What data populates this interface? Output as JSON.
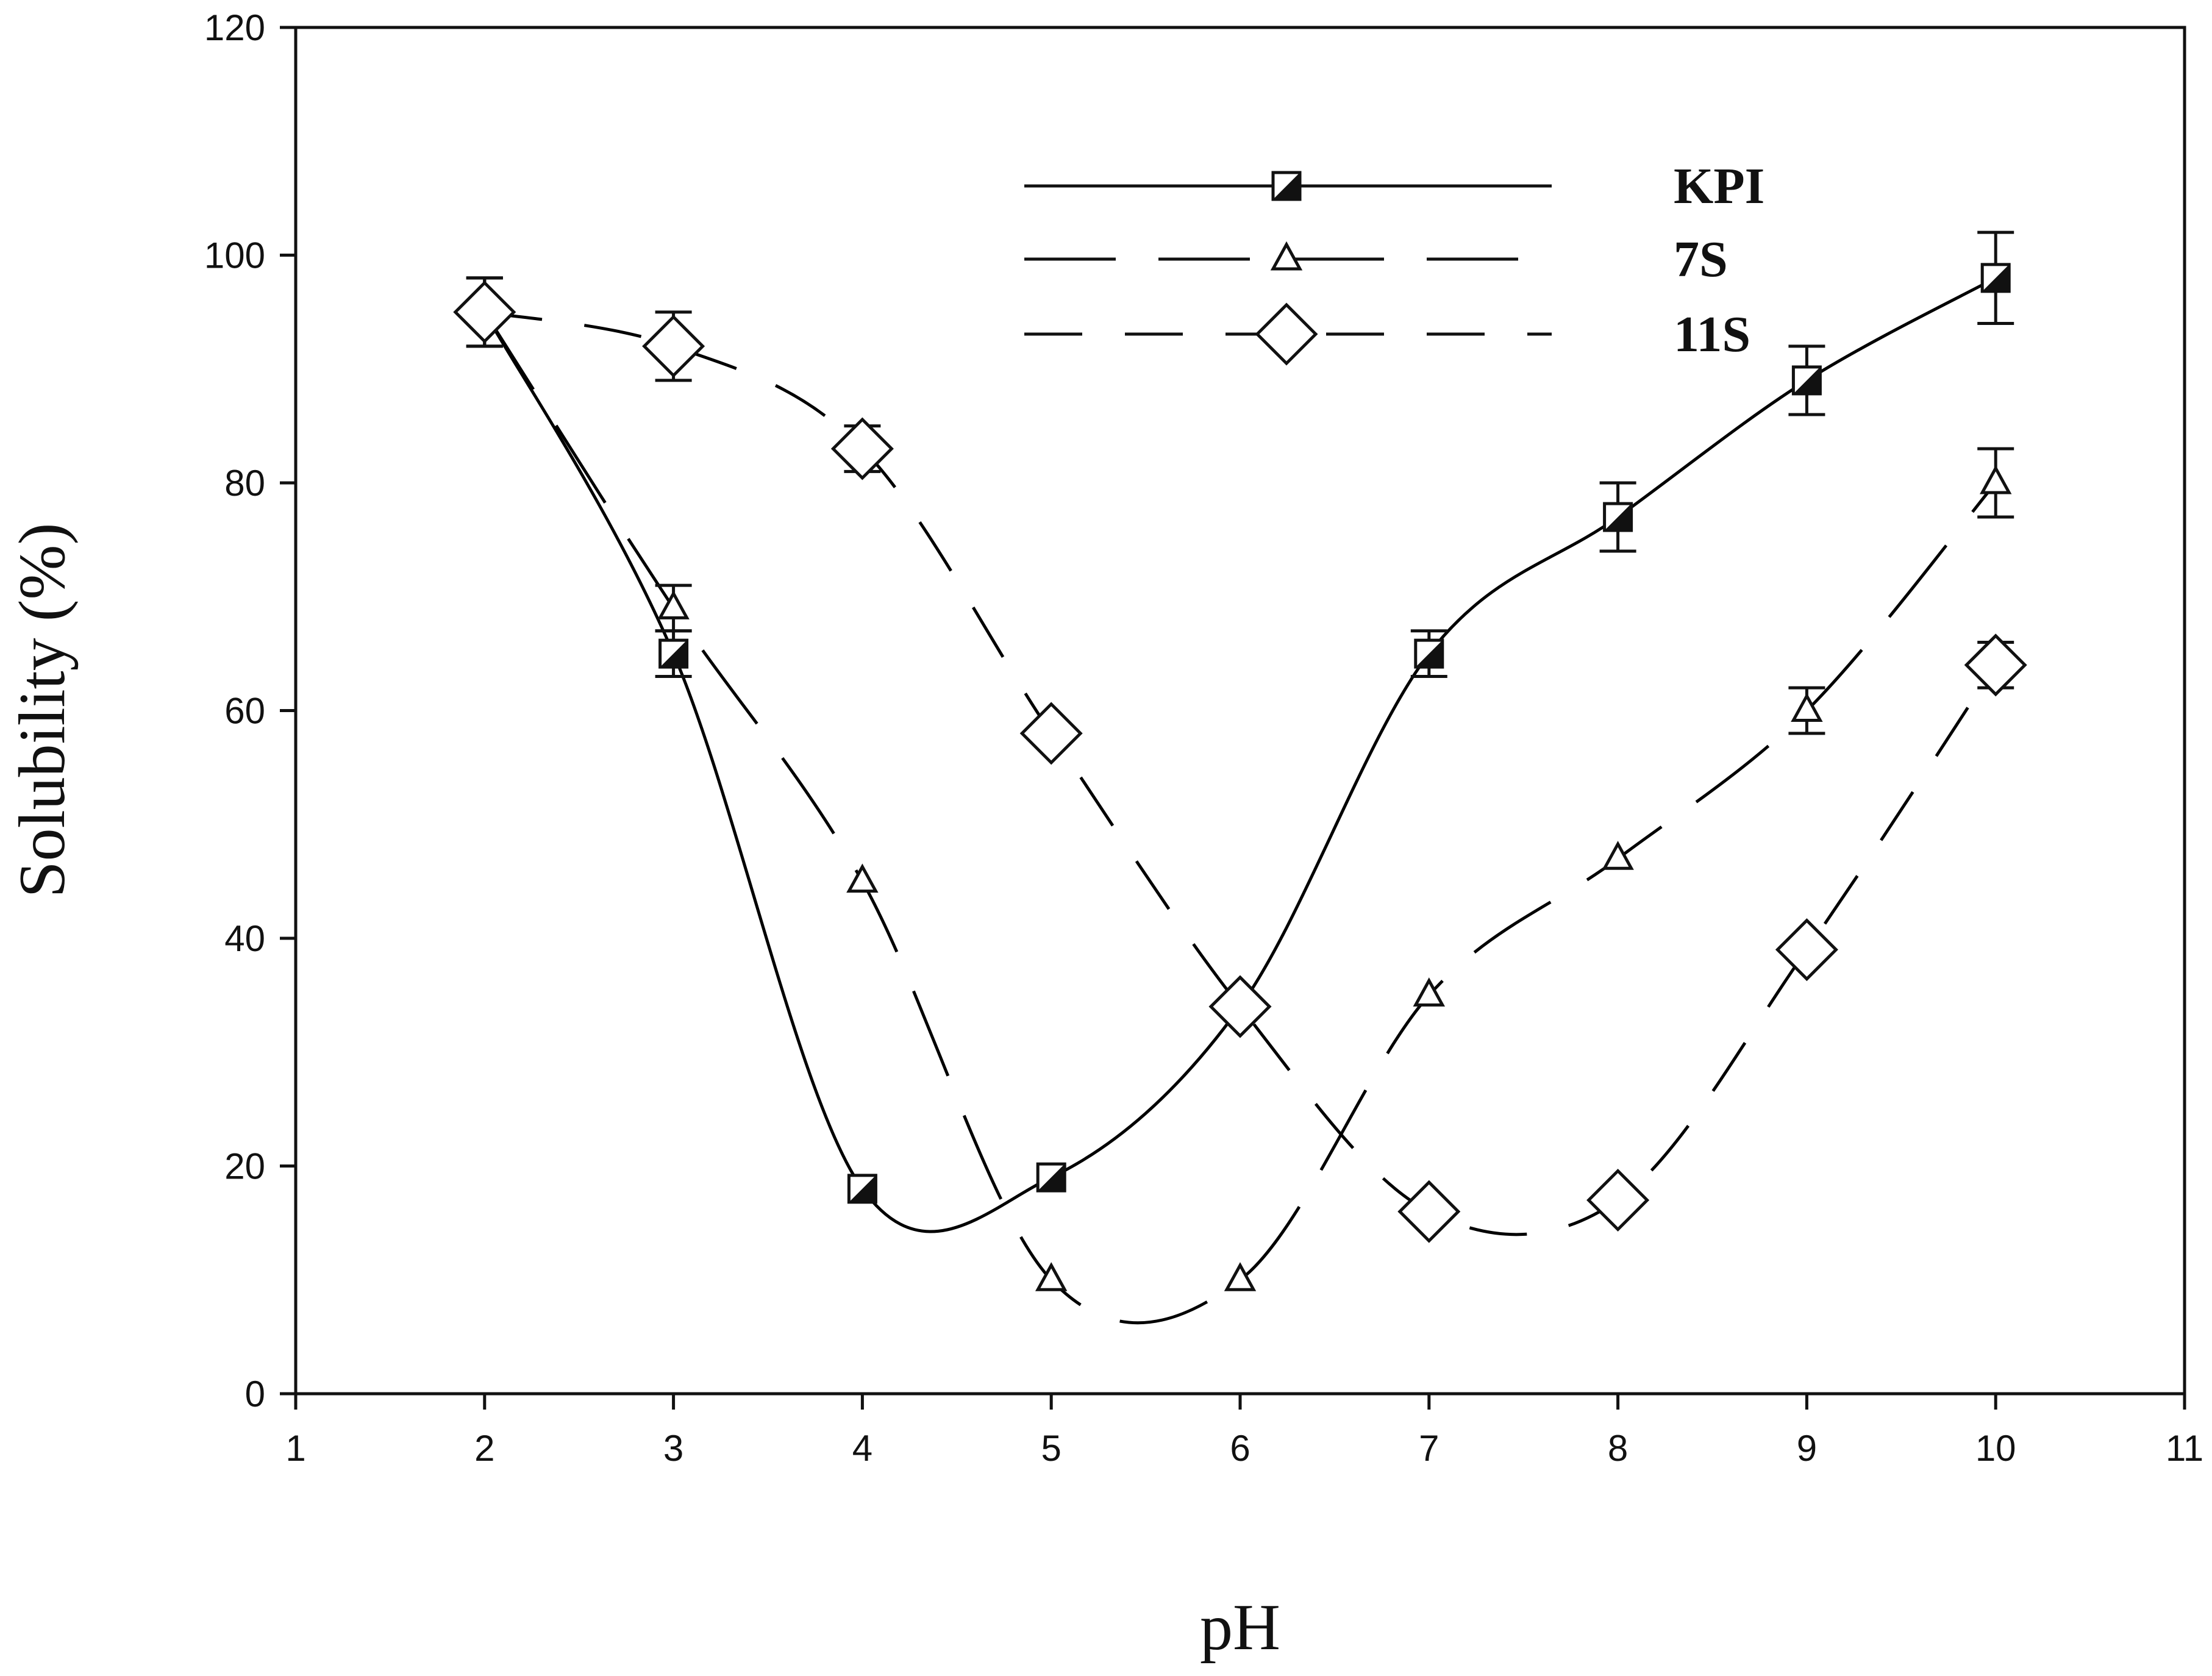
{
  "chart_data": {
    "type": "line",
    "title": "",
    "xlabel": "pH",
    "ylabel": "Solubility (%)",
    "xlim": [
      1,
      11
    ],
    "ylim": [
      0,
      120
    ],
    "x_ticks": [
      1,
      2,
      3,
      4,
      5,
      6,
      7,
      8,
      9,
      10,
      11
    ],
    "y_ticks": [
      0,
      20,
      40,
      60,
      80,
      100,
      120
    ],
    "grid": false,
    "legend_position": "top-center",
    "series": [
      {
        "name": "KPI",
        "marker": "half-filled-square",
        "line_style": "solid",
        "color": "#000000",
        "x": [
          2,
          3,
          4,
          5,
          6,
          7,
          8,
          9,
          10
        ],
        "y": [
          95,
          65,
          18,
          19,
          34,
          65,
          77,
          89,
          98
        ],
        "error": [
          3,
          2,
          0,
          0,
          0,
          2,
          3,
          3,
          4
        ]
      },
      {
        "name": "7S",
        "marker": "triangle-open",
        "line_style": "long-dash",
        "color": "#000000",
        "x": [
          2,
          3,
          4,
          5,
          6,
          7,
          8,
          9,
          10
        ],
        "y": [
          95,
          69,
          45,
          10,
          10,
          35,
          47,
          60,
          80
        ],
        "error": [
          3,
          2,
          0,
          0,
          0,
          0,
          0,
          2,
          3
        ]
      },
      {
        "name": "11S",
        "marker": "diamond-open",
        "line_style": "dash",
        "color": "#000000",
        "x": [
          2,
          3,
          4,
          5,
          6,
          7,
          8,
          9,
          10
        ],
        "y": [
          95,
          92,
          83,
          58,
          34,
          16,
          17,
          39,
          64
        ],
        "error": [
          3,
          3,
          2,
          0,
          0,
          0,
          0,
          0,
          2
        ]
      }
    ]
  }
}
